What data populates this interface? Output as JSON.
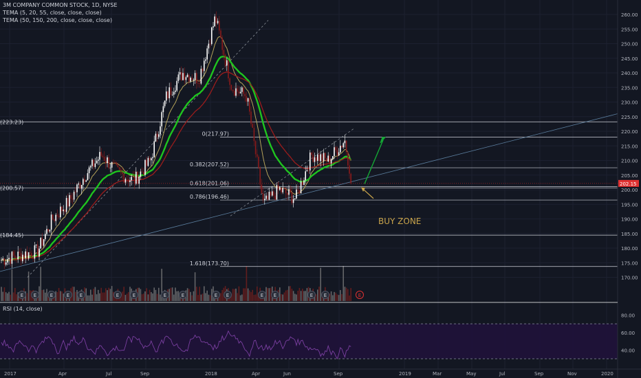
{
  "legend": {
    "title": "3M COMPANY COMMON STOCK, 1D, NYSE",
    "line1": "TEMA (5, 20, 55, close, close, close)",
    "line2": "TEMA (50, 150, 200, close, close, close)"
  },
  "rsi": {
    "label": "RSI (14, close)",
    "levels": [
      70,
      30
    ]
  },
  "colors": {
    "background": "#131722",
    "up": "#ffffff",
    "down": "#8b1a1a",
    "tema_fast": "#b5a35a",
    "tema_mid": "#1fc41f",
    "tema_slow": "#9b1c1c",
    "rsi": "#7a3fa0",
    "trendline": "#5b7e9e",
    "annotation": "#c9a44b",
    "arrow_up": "#14a835"
  },
  "chart_data": {
    "type": "candlestick",
    "title": "3M COMPANY COMMON STOCK, 1D, NYSE",
    "price_axis": {
      "range": [
        166,
        262
      ],
      "ticks": [
        170,
        175,
        180,
        185,
        190,
        195,
        200,
        205,
        210,
        215,
        220,
        225,
        230,
        235,
        240,
        245,
        250,
        255,
        260
      ]
    },
    "time_axis": {
      "labels": [
        "2017",
        "Apr",
        "Jul",
        "Sep",
        "2018",
        "Apr",
        "Jun",
        "Sep",
        "2019",
        "Mar",
        "May",
        "Jul",
        "Sep",
        "Nov",
        "2020"
      ]
    },
    "price_path": [
      {
        "t": "2017-01",
        "close": 176
      },
      {
        "t": "2017-02",
        "close": 179
      },
      {
        "t": "2017-03",
        "close": 190
      },
      {
        "t": "2017-04",
        "close": 196
      },
      {
        "t": "2017-05",
        "close": 205
      },
      {
        "t": "2017-06",
        "close": 212
      },
      {
        "t": "2017-07",
        "close": 206
      },
      {
        "t": "2017-08",
        "close": 203
      },
      {
        "t": "2017-09",
        "close": 210
      },
      {
        "t": "2017-10",
        "close": 232
      },
      {
        "t": "2017-11",
        "close": 240
      },
      {
        "t": "2017-12",
        "close": 238
      },
      {
        "t": "2018-01",
        "close": 259
      },
      {
        "t": "2018-02",
        "close": 235
      },
      {
        "t": "2018-03",
        "close": 232
      },
      {
        "t": "2018-04",
        "close": 195
      },
      {
        "t": "2018-05",
        "close": 200
      },
      {
        "t": "2018-06",
        "close": 197
      },
      {
        "t": "2018-07",
        "close": 212
      },
      {
        "t": "2018-08",
        "close": 210
      },
      {
        "t": "2018-09",
        "close": 217
      },
      {
        "t": "2018-10",
        "close": 202.15
      }
    ],
    "last_price": "202.15",
    "horizontal_levels": [
      {
        "label": "223.23",
        "value": 223.23
      },
      {
        "label": "200.57",
        "value": 200.57
      },
      {
        "label": "184.45",
        "value": 184.45
      }
    ],
    "fibonacci": [
      {
        "label": "0(217.97)",
        "value": 217.97
      },
      {
        "label": "0.382(207.52)",
        "value": 207.52
      },
      {
        "label": "0.618(201.06)",
        "value": 201.06
      },
      {
        "label": "0.786(196.46)",
        "value": 196.46
      },
      {
        "label": "1.618(173.70)",
        "value": 173.7
      }
    ],
    "annotation": "BUY ZONE",
    "rsi_axis": {
      "ticks": [
        80,
        60,
        40
      ]
    }
  }
}
